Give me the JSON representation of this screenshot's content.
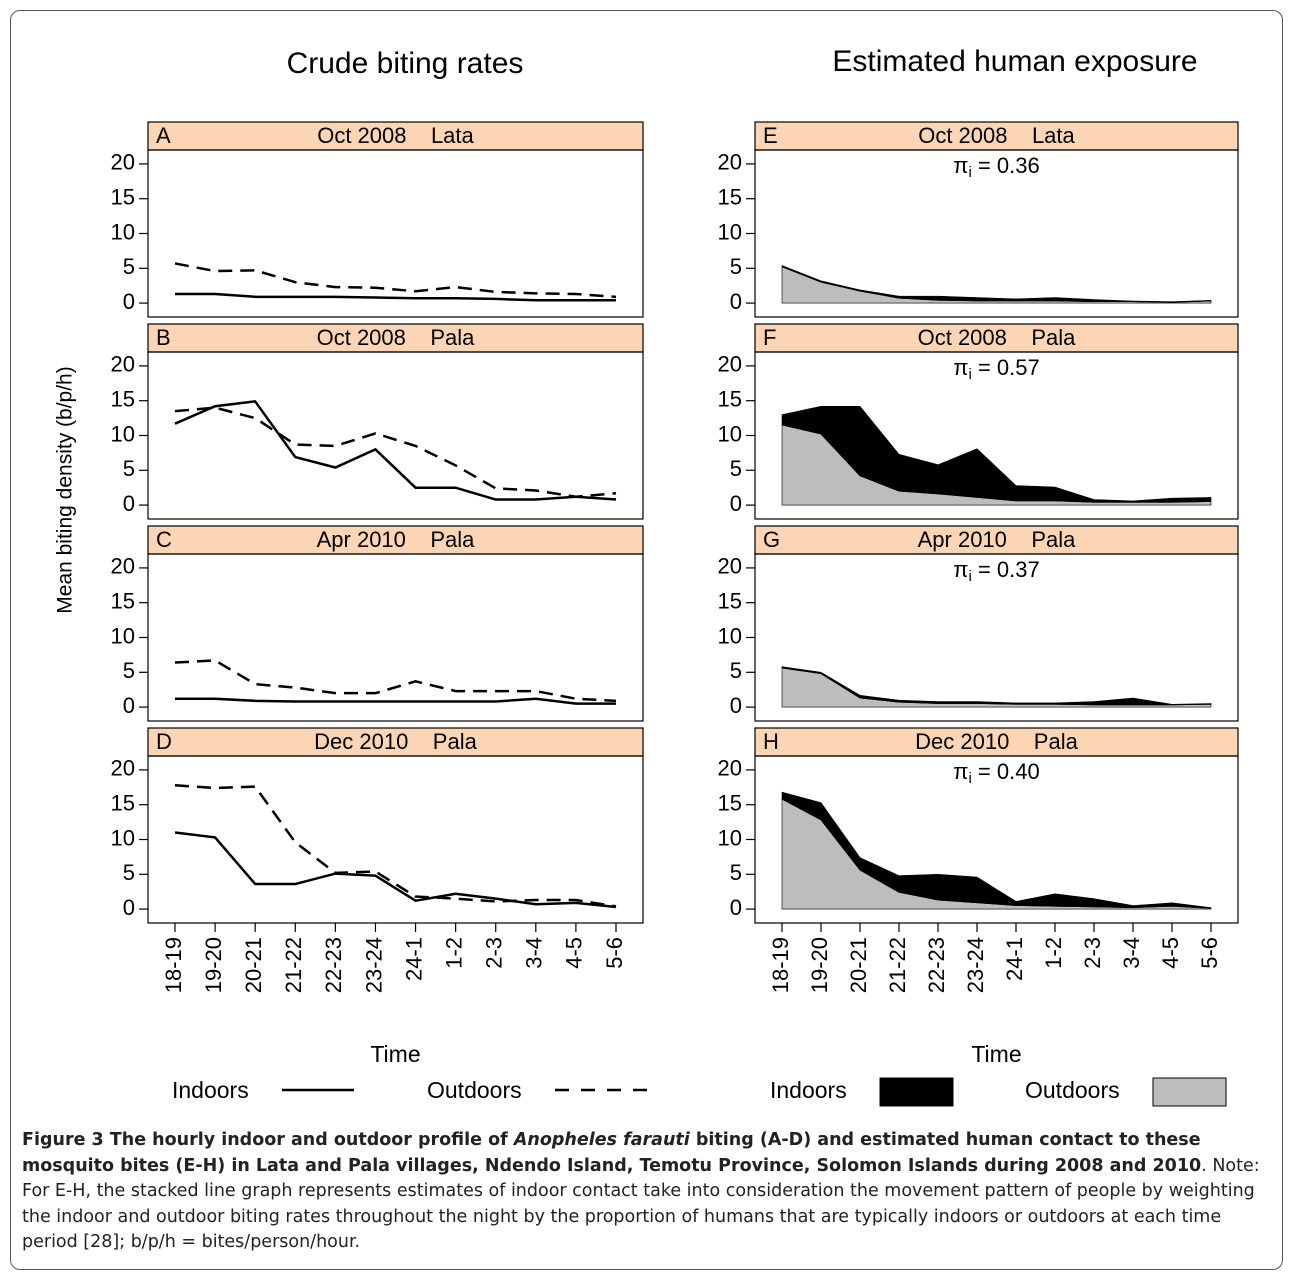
{
  "column_titles": [
    "Crude biting rates",
    "Estimated human exposure"
  ],
  "y_label": "Mean biting density (b/p/h)",
  "caption": {
    "lead": "Figure 3 The hourly indoor and outdoor profile of ",
    "species": "Anopheles farauti",
    "rest": " biting (A-D) and estimated human contact to these mosquito bites (E-H) in Lata and Pala villages, Ndendo Island, Temotu Province, Solomon Islands during 2008 and 2010",
    "note": ". Note: For E-H, the stacked line graph represents estimates of indoor contact take into consideration the movement pattern of people by weighting the indoor and outdoor biting rates throughout the night by the proportion of humans that are typically indoors or outdoors at each time period [28]; b/p/h = bites/person/hour."
  },
  "chart_data": [
    {
      "type": "line",
      "letter": "A",
      "title": "Oct 2008    Lata",
      "categories": [
        null,
        null,
        null,
        null,
        null,
        null,
        null,
        null,
        null,
        null,
        null,
        null
      ],
      "series": [
        {
          "name": "Indoors",
          "color": "#000000",
          "line_style": "solid",
          "values": [
            1.3,
            1.3,
            0.9,
            0.9,
            0.9,
            0.8,
            0.7,
            0.7,
            0.6,
            0.4,
            0.4,
            0.4
          ]
        },
        {
          "name": "Outdoors",
          "color": "#000000",
          "line_style": "dashed",
          "values": [
            5.7,
            4.6,
            4.7,
            3.0,
            2.3,
            2.2,
            1.7,
            2.3,
            1.6,
            1.4,
            1.3,
            0.9
          ]
        }
      ],
      "ylim": [
        -2,
        22
      ],
      "yticks": [
        0,
        5,
        10,
        15,
        20
      ]
    },
    {
      "type": "line",
      "letter": "B",
      "title": "Oct 2008    Pala",
      "categories": [
        null,
        null,
        null,
        null,
        null,
        null,
        null,
        null,
        null,
        null,
        null,
        null
      ],
      "series": [
        {
          "name": "Indoors",
          "color": "#000000",
          "line_style": "solid",
          "values": [
            11.7,
            14.2,
            14.9,
            6.9,
            5.4,
            8.0,
            2.5,
            2.5,
            0.8,
            0.8,
            1.2,
            0.8
          ]
        },
        {
          "name": "Outdoors",
          "color": "#000000",
          "line_style": "dashed",
          "values": [
            13.5,
            14.0,
            12.5,
            8.7,
            8.5,
            10.3,
            8.5,
            5.7,
            2.4,
            2.1,
            1.2,
            1.7
          ]
        }
      ],
      "ylim": [
        -2,
        22
      ],
      "yticks": [
        0,
        5,
        10,
        15,
        20
      ]
    },
    {
      "type": "line",
      "letter": "C",
      "title": "Apr 2010    Pala",
      "categories": [
        null,
        null,
        null,
        null,
        null,
        null,
        null,
        null,
        null,
        null,
        null,
        null
      ],
      "series": [
        {
          "name": "Indoors",
          "color": "#000000",
          "line_style": "solid",
          "values": [
            1.2,
            1.2,
            0.9,
            0.8,
            0.8,
            0.8,
            0.8,
            0.8,
            0.8,
            1.2,
            0.5,
            0.5
          ]
        },
        {
          "name": "Outdoors",
          "color": "#000000",
          "line_style": "dashed",
          "values": [
            6.4,
            6.7,
            3.3,
            2.8,
            2.0,
            2.0,
            3.7,
            2.3,
            2.3,
            2.3,
            1.2,
            0.9
          ]
        }
      ],
      "ylim": [
        -2,
        22
      ],
      "yticks": [
        0,
        5,
        10,
        15,
        20
      ]
    },
    {
      "type": "line",
      "letter": "D",
      "title": "Dec 2010    Pala",
      "x_label": "Time",
      "categories": [
        "18-19",
        "19-20",
        "20-21",
        "21-22",
        "22-23",
        "23-24",
        "24-1",
        "1-2",
        "2-3",
        "3-4",
        "4-5",
        "5-6"
      ],
      "series": [
        {
          "name": "Indoors",
          "color": "#000000",
          "line_style": "solid",
          "values": [
            11.0,
            10.3,
            3.6,
            3.6,
            5.1,
            4.8,
            1.2,
            2.2,
            1.5,
            0.7,
            0.9,
            0.3
          ]
        },
        {
          "name": "Outdoors",
          "color": "#000000",
          "line_style": "dashed",
          "values": [
            17.8,
            17.4,
            17.6,
            9.6,
            5.2,
            5.4,
            1.8,
            1.5,
            1.1,
            1.3,
            1.3,
            0.4
          ]
        }
      ],
      "ylim": [
        -2,
        22
      ],
      "yticks": [
        0,
        5,
        10,
        15,
        20
      ]
    },
    {
      "type": "area",
      "stacked": true,
      "letter": "E",
      "title": "Oct 2008    Lata",
      "annotation": {
        "symbol": "π",
        "subscript": "i",
        "text": " = 0.36"
      },
      "categories": [
        null,
        null,
        null,
        null,
        null,
        null,
        null,
        null,
        null,
        null,
        null,
        null
      ],
      "series": [
        {
          "name": "Indoors",
          "color": "#000000",
          "values": [
            0.2,
            0.2,
            0.2,
            0.3,
            0.6,
            0.5,
            0.3,
            0.5,
            0.3,
            0.1,
            0.1,
            0.1
          ]
        },
        {
          "name": "Outdoors",
          "color": "#bdbdbd",
          "values": [
            5.2,
            3.0,
            1.7,
            0.7,
            0.4,
            0.3,
            0.3,
            0.3,
            0.2,
            0.2,
            0.1,
            0.3
          ]
        }
      ],
      "ylim": [
        -2,
        22
      ],
      "yticks": [
        0,
        5,
        10,
        15,
        20
      ]
    },
    {
      "type": "area",
      "stacked": true,
      "letter": "F",
      "title": "Oct 2008    Pala",
      "annotation": {
        "symbol": "π",
        "subscript": "i",
        "text": " = 0.57"
      },
      "categories": [
        null,
        null,
        null,
        null,
        null,
        null,
        null,
        null,
        null,
        null,
        null,
        null
      ],
      "series": [
        {
          "name": "Indoors",
          "color": "#000000",
          "values": [
            1.5,
            4.0,
            10.0,
            5.3,
            4.2,
            7.0,
            2.2,
            2.0,
            0.4,
            0.2,
            0.6,
            0.6
          ]
        },
        {
          "name": "Outdoors",
          "color": "#bdbdbd",
          "values": [
            11.5,
            10.2,
            4.2,
            2.0,
            1.6,
            1.1,
            0.6,
            0.6,
            0.4,
            0.4,
            0.4,
            0.5
          ]
        }
      ],
      "ylim": [
        -2,
        22
      ],
      "yticks": [
        0,
        5,
        10,
        15,
        20
      ]
    },
    {
      "type": "area",
      "stacked": true,
      "letter": "G",
      "title": "Apr 2010    Pala",
      "annotation": {
        "symbol": "π",
        "subscript": "i",
        "text": " = 0.37"
      },
      "categories": [
        null,
        null,
        null,
        null,
        null,
        null,
        null,
        null,
        null,
        null,
        null,
        null
      ],
      "series": [
        {
          "name": "Indoors",
          "color": "#000000",
          "values": [
            0.2,
            0.2,
            0.4,
            0.3,
            0.3,
            0.3,
            0.2,
            0.2,
            0.5,
            1.0,
            0.1,
            0.1
          ]
        },
        {
          "name": "Outdoors",
          "color": "#bdbdbd",
          "values": [
            5.6,
            4.8,
            1.3,
            0.7,
            0.5,
            0.5,
            0.4,
            0.4,
            0.3,
            0.3,
            0.3,
            0.4
          ]
        }
      ],
      "ylim": [
        -2,
        22
      ],
      "yticks": [
        0,
        5,
        10,
        15,
        20
      ]
    },
    {
      "type": "area",
      "stacked": true,
      "letter": "H",
      "title": "Dec 2010    Pala",
      "x_label": "Time",
      "annotation": {
        "symbol": "π",
        "subscript": "i",
        "text": " = 0.40"
      },
      "categories": [
        "18-19",
        "19-20",
        "20-21",
        "21-22",
        "22-23",
        "23-24",
        "24-1",
        "1-2",
        "2-3",
        "3-4",
        "4-5",
        "5-6"
      ],
      "series": [
        {
          "name": "Indoors",
          "color": "#000000",
          "values": [
            1.0,
            2.5,
            1.8,
            2.4,
            3.7,
            3.7,
            0.6,
            1.8,
            1.2,
            0.3,
            0.5,
            0.1
          ]
        },
        {
          "name": "Outdoors",
          "color": "#bdbdbd",
          "values": [
            15.8,
            12.8,
            5.6,
            2.4,
            1.3,
            0.9,
            0.5,
            0.4,
            0.3,
            0.2,
            0.4,
            0.1
          ]
        }
      ],
      "ylim": [
        -2,
        22
      ],
      "yticks": [
        0,
        5,
        10,
        15,
        20
      ]
    }
  ]
}
